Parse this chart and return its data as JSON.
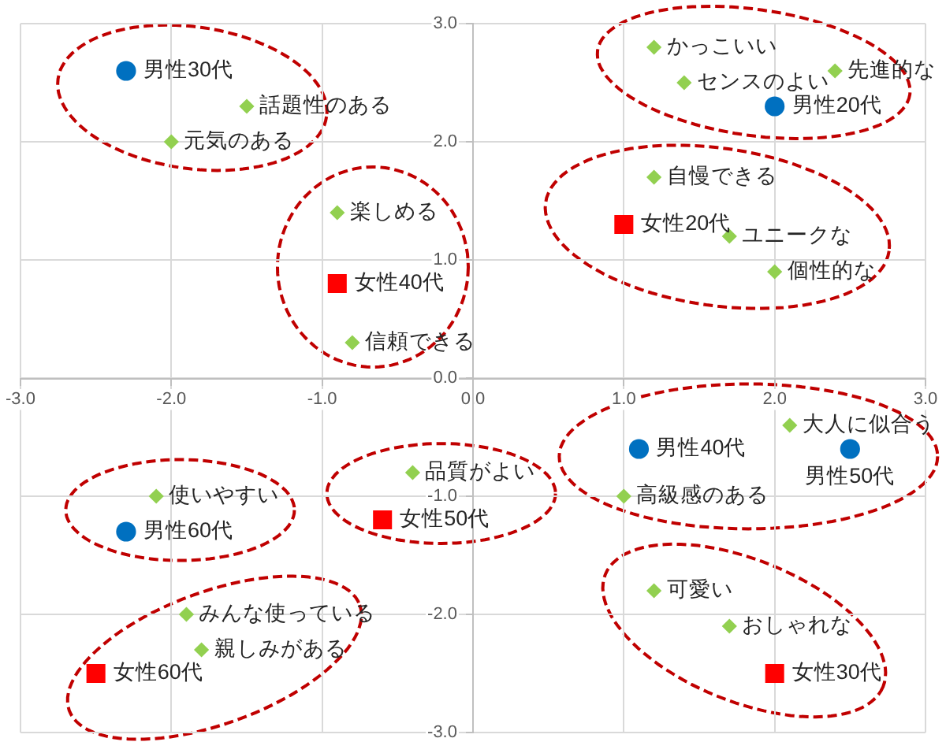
{
  "chart_data": {
    "type": "scatter",
    "xlim": [
      -3,
      3
    ],
    "ylim": [
      -3,
      3
    ],
    "xticks": [
      {
        "value": -3,
        "label": "-3.0"
      },
      {
        "value": -2,
        "label": "-2.0"
      },
      {
        "value": -1,
        "label": "-1.0"
      },
      {
        "value": 0,
        "label": "0.0"
      },
      {
        "value": 1,
        "label": "1.0"
      },
      {
        "value": 2,
        "label": "2.0"
      },
      {
        "value": 3,
        "label": "3.0"
      }
    ],
    "yticks": [
      {
        "value": -3,
        "label": "-3.0"
      },
      {
        "value": -2,
        "label": "-2.0"
      },
      {
        "value": -1,
        "label": "-1.0"
      },
      {
        "value": 0,
        "label": "0.0"
      },
      {
        "value": 1,
        "label": "1.0"
      },
      {
        "value": 2,
        "label": "2.0"
      },
      {
        "value": 3,
        "label": "3.0"
      }
    ],
    "grid": true,
    "series": [
      {
        "name": "男性20代",
        "color": "#0070c0",
        "marker": "circle",
        "x": [
          2.0
        ],
        "values": [
          2.3
        ]
      },
      {
        "name": "男性30代",
        "color": "#0070c0",
        "marker": "circle",
        "x": [
          -2.3
        ],
        "values": [
          2.6
        ]
      },
      {
        "name": "男性40代",
        "color": "#0070c0",
        "marker": "circle",
        "x": [
          1.1
        ],
        "values": [
          -0.6
        ]
      },
      {
        "name": "男性50代",
        "color": "#0070c0",
        "marker": "circle",
        "x": [
          2.5
        ],
        "values": [
          -0.6
        ]
      },
      {
        "name": "男性60代",
        "color": "#0070c0",
        "marker": "circle",
        "x": [
          -2.3
        ],
        "values": [
          -1.3
        ]
      },
      {
        "name": "女性20代",
        "color": "#ff0000",
        "marker": "square",
        "x": [
          1.0
        ],
        "values": [
          1.3
        ]
      },
      {
        "name": "女性30代",
        "color": "#ff0000",
        "marker": "square",
        "x": [
          2.0
        ],
        "values": [
          -2.5
        ]
      },
      {
        "name": "女性40代",
        "color": "#ff0000",
        "marker": "square",
        "x": [
          -0.9
        ],
        "values": [
          0.8
        ]
      },
      {
        "name": "女性50代",
        "color": "#ff0000",
        "marker": "square",
        "x": [
          -0.6
        ],
        "values": [
          -1.2
        ]
      },
      {
        "name": "女性60代",
        "color": "#ff0000",
        "marker": "square",
        "x": [
          -2.5
        ],
        "values": [
          -2.5
        ]
      },
      {
        "name": "かっこいい",
        "color": "#92d050",
        "marker": "diamond",
        "x": [
          1.2
        ],
        "values": [
          2.8
        ]
      },
      {
        "name": "センスのよい",
        "color": "#92d050",
        "marker": "diamond",
        "x": [
          1.4
        ],
        "values": [
          2.5
        ]
      },
      {
        "name": "先進的な",
        "color": "#92d050",
        "marker": "diamond",
        "x": [
          2.4
        ],
        "values": [
          2.6
        ]
      },
      {
        "name": "自慢できる",
        "color": "#92d050",
        "marker": "diamond",
        "x": [
          1.2
        ],
        "values": [
          1.7
        ]
      },
      {
        "name": "ユニークな",
        "color": "#92d050",
        "marker": "diamond",
        "x": [
          1.7
        ],
        "values": [
          1.2
        ]
      },
      {
        "name": "個性的な",
        "color": "#92d050",
        "marker": "diamond",
        "x": [
          2.0
        ],
        "values": [
          0.9
        ]
      },
      {
        "name": "話題性のある",
        "color": "#92d050",
        "marker": "diamond",
        "x": [
          -1.5
        ],
        "values": [
          2.3
        ]
      },
      {
        "name": "元気のある",
        "color": "#92d050",
        "marker": "diamond",
        "x": [
          -2.0
        ],
        "values": [
          2.0
        ]
      },
      {
        "name": "楽しめる",
        "color": "#92d050",
        "marker": "diamond",
        "x": [
          -0.9
        ],
        "values": [
          1.4
        ]
      },
      {
        "name": "信頼できる",
        "color": "#92d050",
        "marker": "diamond",
        "x": [
          -0.8
        ],
        "values": [
          0.3
        ]
      },
      {
        "name": "大人に似合う",
        "color": "#92d050",
        "marker": "diamond",
        "x": [
          2.1
        ],
        "values": [
          -0.4
        ]
      },
      {
        "name": "高級感のある",
        "color": "#92d050",
        "marker": "diamond",
        "x": [
          1.0
        ],
        "values": [
          -1.0
        ]
      },
      {
        "name": "品質がよい",
        "color": "#92d050",
        "marker": "diamond",
        "x": [
          -0.4
        ],
        "values": [
          -0.8
        ]
      },
      {
        "name": "使いやすい",
        "color": "#92d050",
        "marker": "diamond",
        "x": [
          -2.1
        ],
        "values": [
          -1.0
        ]
      },
      {
        "name": "可愛い",
        "color": "#92d050",
        "marker": "diamond",
        "x": [
          1.2
        ],
        "values": [
          -1.8
        ]
      },
      {
        "name": "おしゃれな",
        "color": "#92d050",
        "marker": "diamond",
        "x": [
          1.7
        ],
        "values": [
          -2.1
        ]
      },
      {
        "name": "みんな使っている",
        "color": "#92d050",
        "marker": "diamond",
        "x": [
          -1.9
        ],
        "values": [
          -2.0
        ]
      },
      {
        "name": "親しみがある",
        "color": "#92d050",
        "marker": "diamond",
        "x": [
          -1.8
        ],
        "values": [
          -2.3
        ]
      }
    ]
  }
}
